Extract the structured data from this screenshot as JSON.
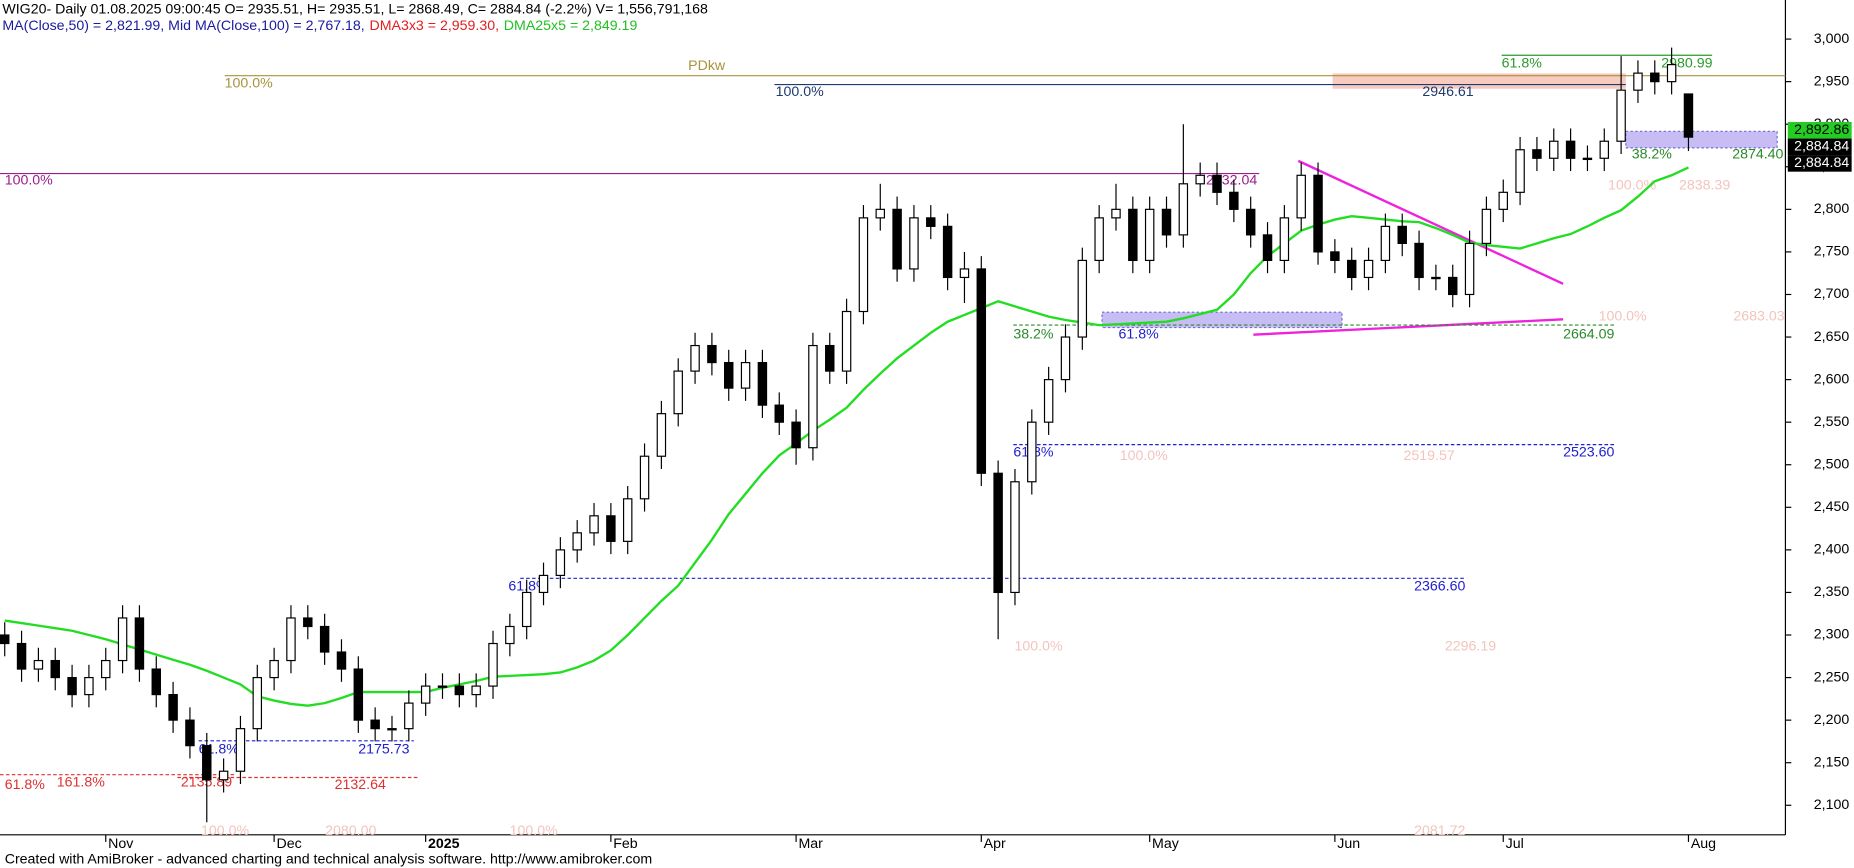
{
  "chart_data": {
    "type": "candlestick",
    "title": "WIG20- Daily 01.08.2025 09:00:45 O= 2935.51, H= 2935.51, L= 2868.49, C= 2884.84 (-2.2%) V= 1,556,791,168",
    "indicators": [
      {
        "text": "MA(Close,50) = 2,821.99, Mid MA(Close,100) = 2,767.18,",
        "color": "#1a1aa0"
      },
      {
        "text": "DMA3x3 = 2,959.30,",
        "color": "#e02020"
      },
      {
        "text": "DMA25x5 = 2,849.19",
        "color": "#22c022"
      }
    ],
    "footer": "Created with AmiBroker - advanced charting and technical analysis software. http://www.amibroker.com",
    "categories": [
      null,
      null,
      null,
      null,
      null,
      null,
      "Nov",
      null,
      null,
      null,
      null,
      null,
      null,
      null,
      null,
      null,
      "Dec",
      null,
      null,
      null,
      null,
      null,
      null,
      null,
      null,
      "2025",
      null,
      null,
      null,
      null,
      null,
      null,
      null,
      null,
      null,
      null,
      "Feb",
      null,
      null,
      null,
      null,
      null,
      null,
      null,
      null,
      null,
      null,
      "Mar",
      null,
      null,
      null,
      null,
      null,
      null,
      null,
      null,
      null,
      null,
      "Apr",
      null,
      null,
      null,
      null,
      null,
      null,
      null,
      null,
      null,
      "May",
      null,
      null,
      null,
      null,
      null,
      null,
      null,
      null,
      null,
      null,
      "Jun",
      null,
      null,
      null,
      null,
      null,
      null,
      null,
      null,
      null,
      "Jul",
      null,
      null,
      null,
      null,
      null,
      null,
      null,
      null,
      null,
      null,
      "Aug"
    ],
    "open": [
      2300,
      2290,
      2260,
      2270,
      2250,
      2230,
      2250,
      2270,
      2320,
      2260,
      2230,
      2200,
      2170,
      2130,
      2140,
      2190,
      2250,
      2270,
      2320,
      2310,
      2280,
      2260,
      2200,
      2190,
      2190,
      2220,
      2240,
      2240,
      2230,
      2240,
      2290,
      2310,
      2350,
      2370,
      2400,
      2420,
      2440,
      2410,
      2460,
      2510,
      2560,
      2610,
      2640,
      2620,
      2590,
      2620,
      2570,
      2550,
      2520,
      2640,
      2610,
      2680,
      2790,
      2800,
      2730,
      2790,
      2780,
      2720,
      2730,
      2490,
      2350,
      2480,
      2550,
      2600,
      2650,
      2740,
      2790,
      2800,
      2740,
      2800,
      2770,
      2830,
      2840,
      2820,
      2800,
      2770,
      2740,
      2790,
      2840,
      2750,
      2740,
      2720,
      2740,
      2780,
      2760,
      2720,
      2720,
      2700,
      2760,
      2800,
      2820,
      2870,
      2860,
      2880,
      2860,
      2860,
      2880,
      2940,
      2960,
      2950,
      2935.51
    ],
    "high": [
      2315,
      2305,
      2285,
      2285,
      2265,
      2265,
      2285,
      2335,
      2335,
      2275,
      2245,
      2215,
      2185,
      2155,
      2205,
      2265,
      2285,
      2335,
      2335,
      2325,
      2295,
      2275,
      2215,
      2205,
      2235,
      2255,
      2255,
      2255,
      2255,
      2305,
      2325,
      2365,
      2385,
      2415,
      2435,
      2455,
      2455,
      2475,
      2525,
      2575,
      2625,
      2655,
      2655,
      2635,
      2635,
      2635,
      2585,
      2565,
      2655,
      2655,
      2695,
      2805,
      2830,
      2815,
      2805,
      2805,
      2795,
      2750,
      2745,
      2505,
      2495,
      2565,
      2615,
      2665,
      2755,
      2805,
      2830,
      2815,
      2815,
      2815,
      2900,
      2855,
      2855,
      2835,
      2815,
      2785,
      2805,
      2855,
      2855,
      2765,
      2755,
      2755,
      2795,
      2795,
      2775,
      2735,
      2735,
      2775,
      2815,
      2835,
      2885,
      2885,
      2895,
      2895,
      2875,
      2895,
      2980,
      2975,
      2975,
      2990,
      2935.51
    ],
    "low": [
      2275,
      2245,
      2245,
      2235,
      2215,
      2215,
      2235,
      2255,
      2245,
      2215,
      2185,
      2155,
      2080,
      2115,
      2125,
      2175,
      2235,
      2255,
      2295,
      2265,
      2245,
      2185,
      2175,
      2175,
      2175,
      2205,
      2225,
      2215,
      2215,
      2225,
      2275,
      2295,
      2335,
      2355,
      2385,
      2405,
      2395,
      2395,
      2445,
      2495,
      2545,
      2595,
      2605,
      2575,
      2575,
      2555,
      2535,
      2500,
      2505,
      2595,
      2595,
      2665,
      2775,
      2715,
      2715,
      2765,
      2705,
      2690,
      2475,
      2295,
      2335,
      2465,
      2535,
      2585,
      2635,
      2725,
      2775,
      2725,
      2725,
      2755,
      2755,
      2815,
      2805,
      2785,
      2755,
      2725,
      2725,
      2775,
      2735,
      2725,
      2705,
      2705,
      2725,
      2745,
      2705,
      2705,
      2685,
      2685,
      2745,
      2785,
      2805,
      2845,
      2845,
      2845,
      2845,
      2845,
      2865,
      2925,
      2935,
      2935,
      2868.49
    ],
    "close": [
      2290,
      2260,
      2270,
      2250,
      2230,
      2250,
      2270,
      2320,
      2260,
      2230,
      2200,
      2170,
      2130,
      2140,
      2190,
      2250,
      2270,
      2320,
      2310,
      2280,
      2260,
      2200,
      2190,
      2190,
      2220,
      2240,
      2240,
      2230,
      2240,
      2290,
      2310,
      2350,
      2370,
      2400,
      2420,
      2440,
      2410,
      2460,
      2510,
      2560,
      2610,
      2640,
      2620,
      2590,
      2620,
      2570,
      2550,
      2520,
      2640,
      2610,
      2680,
      2790,
      2800,
      2730,
      2790,
      2780,
      2720,
      2730,
      2490,
      2350,
      2480,
      2550,
      2600,
      2650,
      2740,
      2790,
      2800,
      2740,
      2800,
      2770,
      2830,
      2840,
      2820,
      2800,
      2770,
      2740,
      2790,
      2840,
      2750,
      2740,
      2720,
      2740,
      2780,
      2760,
      2720,
      2720,
      2700,
      2760,
      2800,
      2820,
      2870,
      2860,
      2880,
      2860,
      2860,
      2880,
      2940,
      2960,
      2950,
      2970,
      2884.84
    ],
    "ma_line": {
      "color": "#22dd22",
      "values": [
        2317,
        2314,
        2311,
        2308,
        2305,
        2300,
        2295,
        2289,
        2283,
        2277,
        2271,
        2265,
        2258,
        2250,
        2242,
        2228,
        2223,
        2219,
        2217,
        2220,
        2226,
        2233,
        2233,
        2233,
        2233,
        2233,
        2238,
        2242,
        2246,
        2251,
        2252,
        2253,
        2254,
        2256,
        2262,
        2270,
        2282,
        2300,
        2320,
        2340,
        2358,
        2385,
        2412,
        2442,
        2466,
        2490,
        2511,
        2525,
        2540,
        2553,
        2567,
        2588,
        2607,
        2625,
        2640,
        2655,
        2668,
        2676,
        2684,
        2692,
        2686,
        2680,
        2674,
        2670,
        2667,
        2664,
        2665,
        2666,
        2667,
        2668,
        2672,
        2677,
        2682,
        2700,
        2725,
        2745,
        2760,
        2775,
        2782,
        2788,
        2792,
        2790,
        2788,
        2786,
        2785,
        2778,
        2770,
        2761,
        2758,
        2756,
        2754,
        2760,
        2766,
        2771,
        2780,
        2790,
        2799,
        2815,
        2833,
        2840,
        2849.19
      ]
    },
    "ylim": [
      2090,
      3045
    ],
    "yticks": [
      {
        "value": 3000,
        "label": "3,000"
      },
      {
        "value": 2950,
        "label": "2,950"
      },
      {
        "value": 2900,
        "label": "2,900"
      },
      {
        "value": 2850,
        "label": "2,850"
      },
      {
        "value": 2800,
        "label": "2,800"
      },
      {
        "value": 2750,
        "label": "2,750"
      },
      {
        "value": 2700,
        "label": "2,700"
      },
      {
        "value": 2650,
        "label": "2,650"
      },
      {
        "value": 2600,
        "label": "2,600"
      },
      {
        "value": 2550,
        "label": "2,550"
      },
      {
        "value": 2500,
        "label": "2,500"
      },
      {
        "value": 2450,
        "label": "2,450"
      },
      {
        "value": 2400,
        "label": "2,400"
      },
      {
        "value": 2350,
        "label": "2,350"
      },
      {
        "value": 2300,
        "label": "2,300"
      },
      {
        "value": 2250,
        "label": "2,250"
      },
      {
        "value": 2200,
        "label": "2,200"
      },
      {
        "value": 2150,
        "label": "2,150"
      },
      {
        "value": 2100,
        "label": "2,100"
      }
    ],
    "price_tags": [
      {
        "value": 2892.86,
        "label": "2,892.86",
        "color": "#22cc22"
      },
      {
        "value": 2884.84,
        "label": "2,884.84",
        "color": "#000000"
      },
      {
        "value": 2884.84,
        "label": "2,884.84",
        "color": "#000000"
      }
    ],
    "levels": [
      {
        "value": 2957,
        "color": "#a8923c",
        "dashed": false,
        "labels": [
          "PDkw",
          "100.0%"
        ]
      },
      {
        "value": 2946.61,
        "color": "#1f3a6e",
        "dashed": false,
        "labels": [
          "100.0%",
          "2946.61"
        ]
      },
      {
        "value": 2842,
        "color": "#9b1e8c",
        "dashed": false,
        "labels": [
          "100.0%"
        ]
      },
      {
        "value": 2175.73,
        "color": "#2020d0",
        "dashed": true,
        "labels": [
          "61.8%",
          "2175.73"
        ]
      },
      {
        "value": 2135.89,
        "color": "#e03030",
        "dashed": true,
        "labels": [
          "61.8%",
          "161.8%",
          "2135.89"
        ]
      },
      {
        "value": 2132.64,
        "color": "#e03030",
        "dashed": true,
        "labels": [
          "2132.64"
        ]
      },
      {
        "value": 2366.6,
        "color": "#2020d0",
        "dashed": true,
        "labels": [
          "61.8%",
          "2366.60"
        ]
      },
      {
        "value": 2523.6,
        "color": "#2020d0",
        "dashed": true,
        "labels": [
          "61.8%",
          "2523.60"
        ]
      },
      {
        "value": 2664.09,
        "color": "#2a8a2a",
        "dashed": true,
        "labels": [
          "38.2%",
          "2664.09"
        ]
      },
      {
        "value": 2980.99,
        "color": "#2a9a2a",
        "dashed": false,
        "labels": [
          "61.8%",
          "2980.99"
        ]
      }
    ],
    "notes": [
      {
        "text": "2832.04",
        "color": "#9b1e8c"
      },
      {
        "text": "61.8%",
        "color": "#2020d0"
      },
      {
        "text": "38.2%",
        "color": "#2a8a2a"
      },
      {
        "text": "2874.40",
        "color": "#2a8a2a"
      },
      {
        "text": "100.0%",
        "color": "#f2c4bc"
      },
      {
        "text": "2519.57",
        "color": "#f2c4bc"
      },
      {
        "text": "100.0%",
        "color": "#f2c4bc"
      },
      {
        "text": "2296.19",
        "color": "#f2c4bc"
      },
      {
        "text": "100.0%",
        "color": "#f2c4bc"
      },
      {
        "text": "2080.00",
        "color": "#f2c4bc"
      },
      {
        "text": "100.0%",
        "color": "#f2c4bc"
      },
      {
        "text": "2081.72",
        "color": "#f2c4bc"
      },
      {
        "text": "100.0%",
        "color": "#f2c4bc"
      },
      {
        "text": "2683.03",
        "color": "#f2c4bc"
      },
      {
        "text": "100.0%",
        "color": "#f2c4bc"
      },
      {
        "text": "2838.39",
        "color": "#f2c4bc"
      }
    ]
  }
}
